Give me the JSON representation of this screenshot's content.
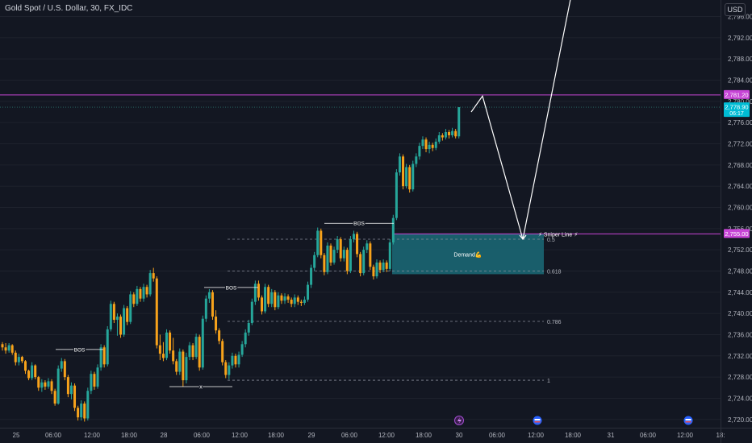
{
  "header": {
    "symbol_title": "Gold Spot / U.S. Dollar, 30, FX_IDC",
    "currency_button": "USD"
  },
  "colors": {
    "background": "#131722",
    "bull": "#26a69a",
    "bear": "#f7a21b",
    "magenta": "#c745d6",
    "zone": "#1b6b78",
    "price_tag": "#00bcd4",
    "text": "#d1d4dc",
    "dashed": "#888c99"
  },
  "chart_data": {
    "type": "candlestick",
    "title": "Gold Spot / U.S. Dollar, 30, FX_IDC",
    "xlabel": "",
    "ylabel": "",
    "ylim": [
      2718,
      2800
    ],
    "y_ticks": [
      "2,720.00",
      "2,724.00",
      "2,728.00",
      "2,732.00",
      "2,736.00",
      "2,740.00",
      "2,744.00",
      "2,748.00",
      "2,752.00",
      "2,756.00",
      "2,760.00",
      "2,764.00",
      "2,768.00",
      "2,772.00",
      "2,776.00",
      "2,780.00",
      "2,784.00",
      "2,788.00",
      "2,792.00",
      "2,796.00"
    ],
    "x_ticks": [
      "25",
      "06:00",
      "12:00",
      "18:00",
      "28",
      "06:00",
      "12:00",
      "18:00",
      "29",
      "06:00",
      "12:00",
      "18:00",
      "30",
      "06:00",
      "12:00",
      "18:00",
      "31",
      "06:00",
      "12:00",
      "18:"
    ],
    "price_labels": [
      {
        "text": "2,781.20",
        "value": 2781.2,
        "color": "#c745d6"
      },
      {
        "text": "2,778.90",
        "value": 2778.9,
        "color": "#00bcd4",
        "sub": "06:17"
      },
      {
        "text": "2,755.00",
        "value": 2755.0,
        "color": "#c745d6"
      }
    ],
    "horizontal_lines": [
      {
        "name": "resistance",
        "value": 2781.2,
        "color": "#c745d6"
      },
      {
        "name": "sniper-line",
        "value": 2755.0,
        "color": "#c745d6"
      }
    ],
    "fib_levels": [
      {
        "label": "0.5",
        "value": 2754.0
      },
      {
        "label": "0.618",
        "value": 2748.0
      },
      {
        "label": "0.786",
        "value": 2738.5
      },
      {
        "label": "1",
        "value": 2727.4
      }
    ],
    "zone": {
      "label": "Demand💪",
      "top": 2755.0,
      "bottom": 2747.4
    },
    "annotations": [
      {
        "text": "BOS",
        "value": 2733.2
      },
      {
        "text": "BOS",
        "value": 2744.9
      },
      {
        "text": "BOS",
        "value": 2757.0
      },
      {
        "text": "x",
        "value": 2726.2
      },
      {
        "text": "⚡ Sniper Line ⚡",
        "value": 2755.0
      }
    ],
    "projection_path": [
      2778.0,
      2781.0,
      2754.0,
      2800.0
    ],
    "candles": [
      [
        2734.2,
        2734.6,
        2733.0,
        2733.6
      ],
      [
        2733.6,
        2734.4,
        2732.4,
        2733.0
      ],
      [
        2733.0,
        2734.4,
        2732.6,
        2734.0
      ],
      [
        2734.0,
        2734.2,
        2732.2,
        2732.6
      ],
      [
        2732.6,
        2733.0,
        2730.2,
        2730.8
      ],
      [
        2730.8,
        2732.4,
        2730.2,
        2731.8
      ],
      [
        2731.8,
        2732.0,
        2730.6,
        2731.0
      ],
      [
        2731.0,
        2731.2,
        2728.6,
        2729.2
      ],
      [
        2729.2,
        2729.4,
        2727.4,
        2727.8
      ],
      [
        2727.8,
        2730.8,
        2727.4,
        2730.2
      ],
      [
        2730.2,
        2730.4,
        2727.6,
        2728.0
      ],
      [
        2728.0,
        2728.2,
        2725.4,
        2726.0
      ],
      [
        2726.0,
        2727.6,
        2725.2,
        2727.0
      ],
      [
        2727.0,
        2727.4,
        2725.6,
        2726.2
      ],
      [
        2726.2,
        2727.8,
        2725.8,
        2727.2
      ],
      [
        2727.2,
        2727.6,
        2724.8,
        2725.4
      ],
      [
        2725.4,
        2725.8,
        2722.6,
        2723.0
      ],
      [
        2723.0,
        2730.2,
        2722.8,
        2729.6
      ],
      [
        2729.6,
        2731.6,
        2729.0,
        2731.0
      ],
      [
        2731.0,
        2731.4,
        2727.4,
        2728.0
      ],
      [
        2728.0,
        2728.4,
        2724.2,
        2724.8
      ],
      [
        2724.8,
        2727.0,
        2723.8,
        2726.4
      ],
      [
        2726.4,
        2726.8,
        2721.6,
        2722.2
      ],
      [
        2722.2,
        2722.6,
        2719.8,
        2720.4
      ],
      [
        2720.4,
        2723.6,
        2719.8,
        2723.0
      ],
      [
        2723.0,
        2723.4,
        2719.6,
        2720.2
      ],
      [
        2720.2,
        2726.0,
        2719.8,
        2725.4
      ],
      [
        2725.4,
        2729.2,
        2724.8,
        2728.6
      ],
      [
        2728.6,
        2729.0,
        2725.6,
        2726.2
      ],
      [
        2726.2,
        2730.4,
        2725.8,
        2729.8
      ],
      [
        2729.8,
        2734.2,
        2729.2,
        2733.6
      ],
      [
        2733.6,
        2734.0,
        2729.8,
        2730.4
      ],
      [
        2730.4,
        2737.6,
        2730.0,
        2737.0
      ],
      [
        2737.0,
        2742.4,
        2736.6,
        2741.8
      ],
      [
        2741.8,
        2742.2,
        2738.2,
        2738.8
      ],
      [
        2738.8,
        2740.0,
        2735.8,
        2739.4
      ],
      [
        2739.4,
        2739.8,
        2735.4,
        2736.0
      ],
      [
        2736.0,
        2741.6,
        2735.6,
        2741.0
      ],
      [
        2741.0,
        2741.4,
        2737.8,
        2738.4
      ],
      [
        2738.4,
        2744.2,
        2738.0,
        2743.6
      ],
      [
        2743.6,
        2744.0,
        2741.2,
        2741.8
      ],
      [
        2741.8,
        2745.2,
        2741.4,
        2744.6
      ],
      [
        2744.6,
        2745.0,
        2742.2,
        2742.8
      ],
      [
        2742.8,
        2745.6,
        2742.2,
        2745.0
      ],
      [
        2745.0,
        2745.4,
        2743.0,
        2743.6
      ],
      [
        2743.6,
        2748.2,
        2743.2,
        2747.6
      ],
      [
        2747.6,
        2748.6,
        2746.0,
        2746.6
      ],
      [
        2746.6,
        2747.0,
        2733.4,
        2734.0
      ],
      [
        2734.0,
        2736.0,
        2731.2,
        2732.4
      ],
      [
        2732.4,
        2734.6,
        2731.0,
        2731.6
      ],
      [
        2731.6,
        2737.0,
        2731.2,
        2736.4
      ],
      [
        2736.4,
        2736.8,
        2732.4,
        2733.0
      ],
      [
        2733.0,
        2735.4,
        2730.4,
        2731.0
      ],
      [
        2731.0,
        2731.4,
        2728.4,
        2729.0
      ],
      [
        2729.0,
        2733.4,
        2728.4,
        2732.8
      ],
      [
        2732.8,
        2733.2,
        2726.2,
        2727.4
      ],
      [
        2727.4,
        2732.6,
        2726.8,
        2731.8
      ],
      [
        2731.8,
        2734.6,
        2731.2,
        2734.0
      ],
      [
        2734.0,
        2734.4,
        2731.2,
        2731.8
      ],
      [
        2731.8,
        2736.2,
        2731.4,
        2735.6
      ],
      [
        2735.6,
        2736.0,
        2729.2,
        2729.8
      ],
      [
        2729.8,
        2739.6,
        2729.4,
        2739.0
      ],
      [
        2739.0,
        2743.4,
        2738.4,
        2742.8
      ],
      [
        2742.8,
        2744.6,
        2742.0,
        2744.0
      ],
      [
        2744.0,
        2744.4,
        2738.8,
        2739.4
      ],
      [
        2739.4,
        2740.6,
        2736.2,
        2736.8
      ],
      [
        2736.8,
        2737.2,
        2734.2,
        2734.8
      ],
      [
        2734.8,
        2735.2,
        2730.2,
        2730.8
      ],
      [
        2730.8,
        2731.2,
        2727.8,
        2728.4
      ],
      [
        2728.4,
        2730.8,
        2727.6,
        2730.2
      ],
      [
        2730.2,
        2732.6,
        2729.6,
        2732.0
      ],
      [
        2732.0,
        2732.4,
        2729.8,
        2730.4
      ],
      [
        2730.4,
        2732.8,
        2729.8,
        2732.2
      ],
      [
        2732.2,
        2734.8,
        2731.8,
        2734.2
      ],
      [
        2734.2,
        2737.0,
        2733.6,
        2736.4
      ],
      [
        2736.4,
        2738.8,
        2735.8,
        2738.2
      ],
      [
        2738.2,
        2742.8,
        2737.8,
        2742.2
      ],
      [
        2742.2,
        2746.2,
        2741.6,
        2745.6
      ],
      [
        2745.6,
        2746.2,
        2742.4,
        2743.0
      ],
      [
        2743.0,
        2743.4,
        2739.8,
        2740.4
      ],
      [
        2740.4,
        2745.6,
        2740.0,
        2745.0
      ],
      [
        2745.0,
        2745.4,
        2741.2,
        2741.8
      ],
      [
        2741.8,
        2744.6,
        2741.2,
        2744.0
      ],
      [
        2744.0,
        2744.4,
        2740.6,
        2741.2
      ],
      [
        2741.2,
        2744.0,
        2740.8,
        2743.4
      ],
      [
        2743.4,
        2743.8,
        2741.8,
        2742.4
      ],
      [
        2742.4,
        2743.8,
        2741.8,
        2743.2
      ],
      [
        2743.2,
        2743.6,
        2742.0,
        2742.6
      ],
      [
        2742.6,
        2743.0,
        2741.2,
        2741.8
      ],
      [
        2741.8,
        2743.6,
        2741.2,
        2743.0
      ],
      [
        2743.0,
        2743.4,
        2741.6,
        2742.2
      ],
      [
        2742.2,
        2742.6,
        2741.4,
        2742.0
      ],
      [
        2742.0,
        2743.2,
        2741.6,
        2742.6
      ],
      [
        2742.6,
        2746.0,
        2742.2,
        2745.4
      ],
      [
        2745.4,
        2749.2,
        2744.8,
        2748.6
      ],
      [
        2748.6,
        2751.6,
        2748.0,
        2751.0
      ],
      [
        2751.0,
        2756.2,
        2750.6,
        2755.6
      ],
      [
        2755.6,
        2756.0,
        2750.4,
        2751.0
      ],
      [
        2751.0,
        2751.4,
        2747.2,
        2747.8
      ],
      [
        2747.8,
        2753.4,
        2747.4,
        2752.8
      ],
      [
        2752.8,
        2753.2,
        2749.0,
        2749.6
      ],
      [
        2749.6,
        2752.6,
        2749.2,
        2752.0
      ],
      [
        2752.0,
        2754.6,
        2751.4,
        2754.0
      ],
      [
        2754.0,
        2754.4,
        2749.8,
        2750.4
      ],
      [
        2750.4,
        2752.6,
        2749.8,
        2752.0
      ],
      [
        2752.0,
        2752.4,
        2747.4,
        2748.0
      ],
      [
        2748.0,
        2754.6,
        2747.6,
        2754.0
      ],
      [
        2754.0,
        2755.6,
        2753.4,
        2755.0
      ],
      [
        2755.0,
        2755.4,
        2750.6,
        2751.2
      ],
      [
        2751.2,
        2751.6,
        2747.0,
        2747.6
      ],
      [
        2747.6,
        2752.6,
        2747.2,
        2752.0
      ],
      [
        2752.0,
        2753.8,
        2751.4,
        2753.2
      ],
      [
        2753.2,
        2753.6,
        2748.2,
        2748.8
      ],
      [
        2748.8,
        2749.2,
        2746.4,
        2747.0
      ],
      [
        2747.0,
        2750.2,
        2746.6,
        2749.6
      ],
      [
        2749.6,
        2750.0,
        2747.6,
        2748.2
      ],
      [
        2748.2,
        2750.2,
        2747.8,
        2749.6
      ],
      [
        2749.6,
        2750.0,
        2747.8,
        2748.4
      ],
      [
        2748.4,
        2754.0,
        2748.0,
        2753.4
      ],
      [
        2753.4,
        2758.6,
        2753.0,
        2758.0
      ],
      [
        2758.0,
        2767.2,
        2757.6,
        2766.6
      ],
      [
        2766.6,
        2770.2,
        2766.0,
        2769.6
      ],
      [
        2769.6,
        2770.0,
        2763.4,
        2764.0
      ],
      [
        2764.0,
        2768.2,
        2763.6,
        2767.6
      ],
      [
        2767.6,
        2768.0,
        2762.8,
        2763.4
      ],
      [
        2763.4,
        2768.8,
        2763.0,
        2768.2
      ],
      [
        2768.2,
        2770.2,
        2767.6,
        2769.6
      ],
      [
        2769.6,
        2772.2,
        2769.0,
        2771.6
      ],
      [
        2771.6,
        2773.4,
        2771.0,
        2772.8
      ],
      [
        2772.8,
        2773.2,
        2770.4,
        2771.0
      ],
      [
        2771.0,
        2772.4,
        2770.2,
        2771.8
      ],
      [
        2771.8,
        2772.2,
        2770.6,
        2771.2
      ],
      [
        2771.2,
        2773.0,
        2770.8,
        2772.4
      ],
      [
        2772.4,
        2774.2,
        2772.0,
        2773.6
      ],
      [
        2773.6,
        2774.0,
        2772.6,
        2773.2
      ],
      [
        2773.2,
        2774.8,
        2772.8,
        2774.2
      ],
      [
        2774.2,
        2774.6,
        2773.0,
        2773.6
      ],
      [
        2773.6,
        2775.0,
        2773.2,
        2774.4
      ],
      [
        2774.4,
        2774.8,
        2773.0,
        2773.4
      ],
      [
        2773.4,
        2778.9,
        2773.0,
        2778.9
      ]
    ]
  },
  "icons": {
    "dividend": "lightning-event-icon",
    "earnings": "us-flag-event-icon"
  }
}
